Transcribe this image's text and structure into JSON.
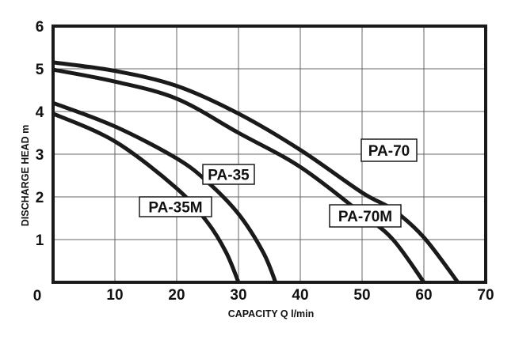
{
  "chart_data": {
    "type": "line",
    "title": "",
    "xlabel": "CAPACITY Q l/min",
    "ylabel": "DISCHARGE HEAD m",
    "xlim": [
      0,
      70
    ],
    "ylim": [
      0,
      6
    ],
    "x_ticks": [
      "0",
      "10",
      "20",
      "30",
      "40",
      "50",
      "60",
      "70"
    ],
    "y_ticks": [
      "1",
      "2",
      "3",
      "4",
      "5",
      "6"
    ],
    "grid": true,
    "line_color": "#1a1a1a",
    "series": [
      {
        "name": "PA-35M",
        "x": [
          0,
          10,
          20,
          25,
          28,
          30
        ],
        "y": [
          3.95,
          3.3,
          2.2,
          1.4,
          0.7,
          0
        ]
      },
      {
        "name": "PA-35",
        "x": [
          0,
          10,
          20,
          25,
          30,
          34,
          36
        ],
        "y": [
          4.2,
          3.65,
          2.9,
          2.35,
          1.6,
          0.7,
          0
        ]
      },
      {
        "name": "PA-70M",
        "x": [
          0,
          10,
          20,
          30,
          40,
          50,
          55,
          60
        ],
        "y": [
          4.98,
          4.7,
          4.3,
          3.5,
          2.7,
          1.6,
          1.0,
          0
        ]
      },
      {
        "name": "PA-70",
        "x": [
          0,
          10,
          20,
          30,
          40,
          50,
          55,
          60,
          65.5
        ],
        "y": [
          5.15,
          4.95,
          4.6,
          3.95,
          3.1,
          2.1,
          1.7,
          1.05,
          0
        ]
      }
    ]
  }
}
